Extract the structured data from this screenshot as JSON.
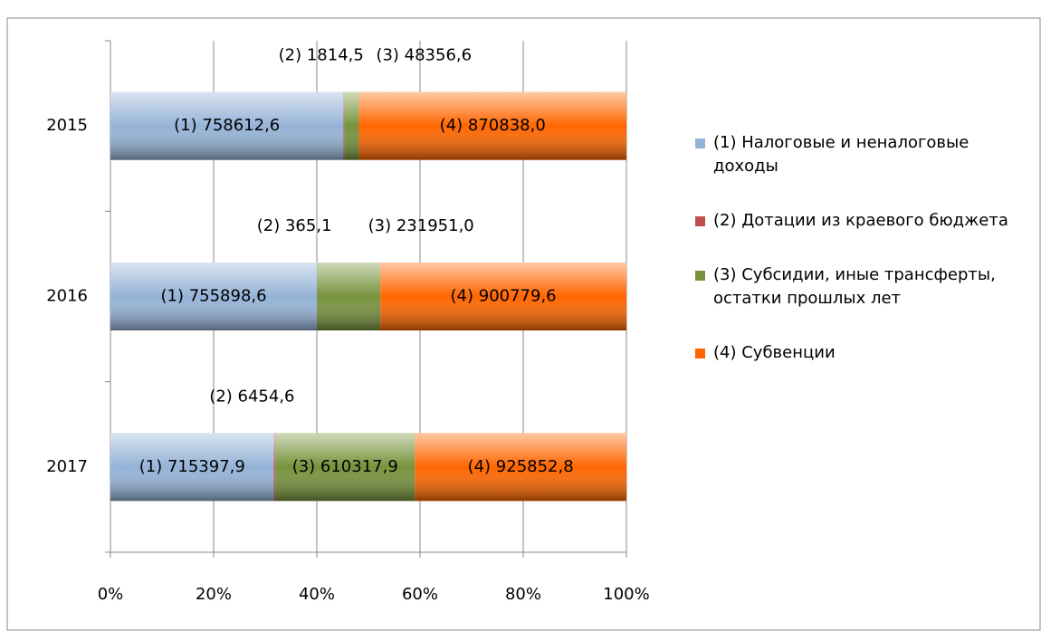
{
  "chart_data": {
    "type": "bar",
    "orientation": "horizontal",
    "stacking": "percent",
    "categories": [
      "2015",
      "2016",
      "2017"
    ],
    "series": [
      {
        "name": "(1) Налоговые и неналоговые доходы",
        "color": "#95b3d7",
        "values": [
          758612.6,
          755898.6,
          715397.9
        ],
        "value_labels": [
          "(1) 758612,6",
          "(1) 755898,6",
          "(1) 715397,9"
        ]
      },
      {
        "name": "(2) Дотации из краевого бюджета",
        "color": "#c0504d",
        "values": [
          1814.5,
          365.1,
          6454.6
        ],
        "value_labels": [
          "(2) 1814,5",
          "(2) 365,1",
          "(2) 6454,6"
        ]
      },
      {
        "name": "(3) Субсидии, иные трансферты, остатки прошлых лет",
        "color": "#77933c",
        "values": [
          48356.6,
          231951.0,
          610317.9
        ],
        "value_labels": [
          "(3) 48356,6",
          "(3) 231951,0",
          "(3) 610317,9"
        ]
      },
      {
        "name": "(4) Субвенции",
        "color": "#ff6600",
        "values": [
          870838.0,
          900779.6,
          925852.8
        ],
        "value_labels": [
          "(4) 870838,0",
          "(4) 900779,6",
          "(4) 925852,8"
        ]
      }
    ],
    "xlim": [
      0,
      100
    ],
    "xticks": [
      {
        "value": 0,
        "label": "0%"
      },
      {
        "value": 20,
        "label": "20%"
      },
      {
        "value": 40,
        "label": "40%"
      },
      {
        "value": 60,
        "label": "60%"
      },
      {
        "value": 80,
        "label": "80%"
      },
      {
        "value": 100,
        "label": "100%"
      }
    ],
    "grid": true,
    "legend": "right"
  }
}
